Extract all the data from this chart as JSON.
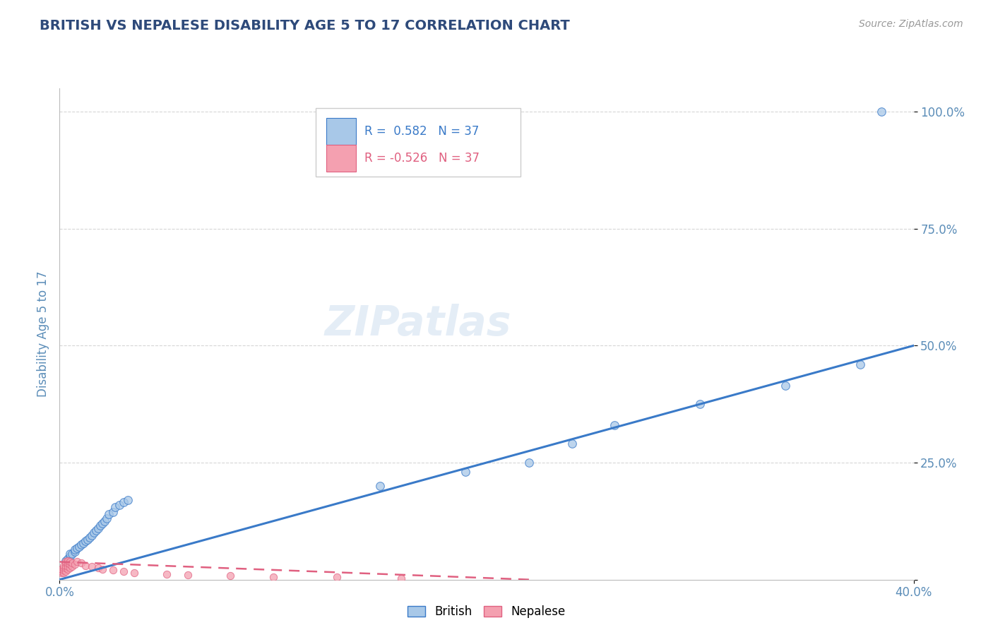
{
  "title": "BRITISH VS NEPALESE DISABILITY AGE 5 TO 17 CORRELATION CHART",
  "source": "Source: ZipAtlas.com",
  "ylabel": "Disability Age 5 to 17",
  "xlim": [
    0.0,
    0.4
  ],
  "ylim": [
    0.0,
    1.05
  ],
  "ytick_positions": [
    0.0,
    0.25,
    0.5,
    0.75,
    1.0
  ],
  "ytick_labels": [
    "",
    "25.0%",
    "50.0%",
    "75.0%",
    "100.0%"
  ],
  "british_R": 0.582,
  "nepalese_R": -0.526,
  "N": 37,
  "title_color": "#2E4A7A",
  "axis_color": "#5B8DB8",
  "dot_blue": "#A8C8E8",
  "dot_pink": "#F4A0B0",
  "line_blue": "#3A7AC8",
  "line_pink": "#E06080",
  "british_x": [
    0.003,
    0.004,
    0.005,
    0.005,
    0.006,
    0.007,
    0.007,
    0.008,
    0.009,
    0.01,
    0.011,
    0.012,
    0.013,
    0.014,
    0.015,
    0.016,
    0.017,
    0.018,
    0.019,
    0.02,
    0.021,
    0.022,
    0.023,
    0.025,
    0.026,
    0.028,
    0.03,
    0.032,
    0.15,
    0.19,
    0.22,
    0.24,
    0.26,
    0.3,
    0.34,
    0.375,
    0.385
  ],
  "british_y": [
    0.04,
    0.045,
    0.05,
    0.055,
    0.055,
    0.06,
    0.065,
    0.068,
    0.07,
    0.075,
    0.078,
    0.082,
    0.085,
    0.09,
    0.095,
    0.1,
    0.105,
    0.11,
    0.115,
    0.12,
    0.125,
    0.13,
    0.14,
    0.145,
    0.155,
    0.16,
    0.165,
    0.17,
    0.2,
    0.23,
    0.25,
    0.29,
    0.33,
    0.375,
    0.415,
    0.46,
    1.0
  ],
  "nepalese_x": [
    0.001,
    0.001,
    0.001,
    0.002,
    0.002,
    0.002,
    0.002,
    0.003,
    0.003,
    0.003,
    0.003,
    0.003,
    0.004,
    0.004,
    0.004,
    0.004,
    0.005,
    0.005,
    0.005,
    0.006,
    0.006,
    0.007,
    0.008,
    0.01,
    0.012,
    0.015,
    0.018,
    0.02,
    0.025,
    0.03,
    0.035,
    0.05,
    0.06,
    0.08,
    0.1,
    0.13,
    0.16
  ],
  "nepalese_y": [
    0.015,
    0.018,
    0.022,
    0.015,
    0.02,
    0.025,
    0.03,
    0.018,
    0.025,
    0.03,
    0.035,
    0.038,
    0.022,
    0.028,
    0.035,
    0.04,
    0.025,
    0.032,
    0.038,
    0.028,
    0.035,
    0.032,
    0.038,
    0.035,
    0.03,
    0.028,
    0.025,
    0.022,
    0.02,
    0.018,
    0.015,
    0.012,
    0.01,
    0.008,
    0.006,
    0.005,
    0.003
  ],
  "watermark": "ZIPatlas",
  "legend_british_label": "British",
  "legend_nepalese_label": "Nepalese",
  "grid_color": "#CCCCCC",
  "background_color": "#FFFFFF",
  "brit_line_x": [
    0.0,
    0.4
  ],
  "brit_line_y": [
    0.0,
    0.5
  ],
  "nep_line_x": [
    0.0,
    0.22
  ],
  "nep_line_y": [
    0.038,
    0.0
  ]
}
